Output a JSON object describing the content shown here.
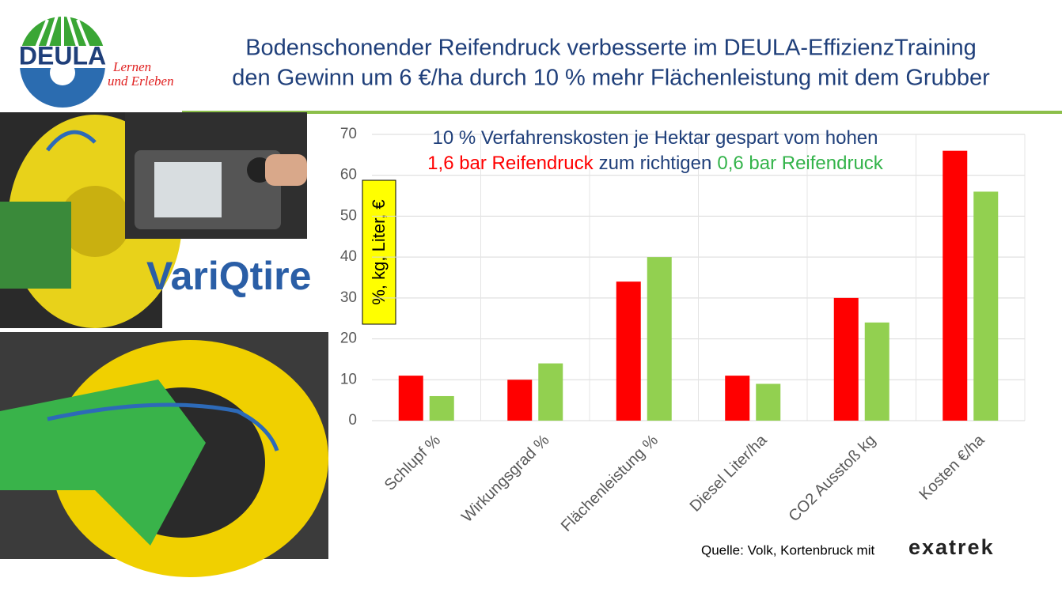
{
  "header": {
    "title_lines": [
      "Bodenschonender Reifendruck verbesserte im DEULA-EffizienzTraining",
      "den Gewinn um 6 €/ha durch 10 % mehr Flächenleistung mit dem Grubber"
    ]
  },
  "logos": {
    "deula": "DEULA",
    "slogan": [
      "Lernen",
      "und Erleben"
    ],
    "variqtire": "VariQtire",
    "exatrek": "exatrek"
  },
  "source": "Quelle: Volk, Kortenbruck mit",
  "chart_data": {
    "type": "bar",
    "annotation_lines": [
      [
        {
          "text": "10 % Verfahrenskosten je Hektar gespart vom hohen",
          "color": "#1f3f7a"
        }
      ],
      [
        {
          "text": "1,6 bar Reifendruck",
          "color": "#ff0000"
        },
        {
          "text": "zum richtigen",
          "color": "#1f3f7a"
        },
        {
          "text": "0,6 bar Reifendruck",
          "color": "#33b34a"
        }
      ]
    ],
    "y_label": "%, kg, Liter, €",
    "categories": [
      "Schlupf %",
      "Wirkungsgrad %",
      "Flächenleistung %",
      "Diesel Liter/ha",
      "CO2 Ausstoß kg",
      "Kosten €/ha"
    ],
    "series": [
      {
        "color": "#ff0000",
        "values": [
          11,
          10,
          34,
          11,
          30,
          66
        ]
      },
      {
        "color": "#92d050",
        "values": [
          6,
          14,
          40,
          9,
          24,
          56
        ]
      }
    ],
    "ylim": [
      0,
      70
    ],
    "yticks": [
      0,
      10,
      20,
      30,
      40,
      50,
      60,
      70
    ],
    "grid": true
  }
}
